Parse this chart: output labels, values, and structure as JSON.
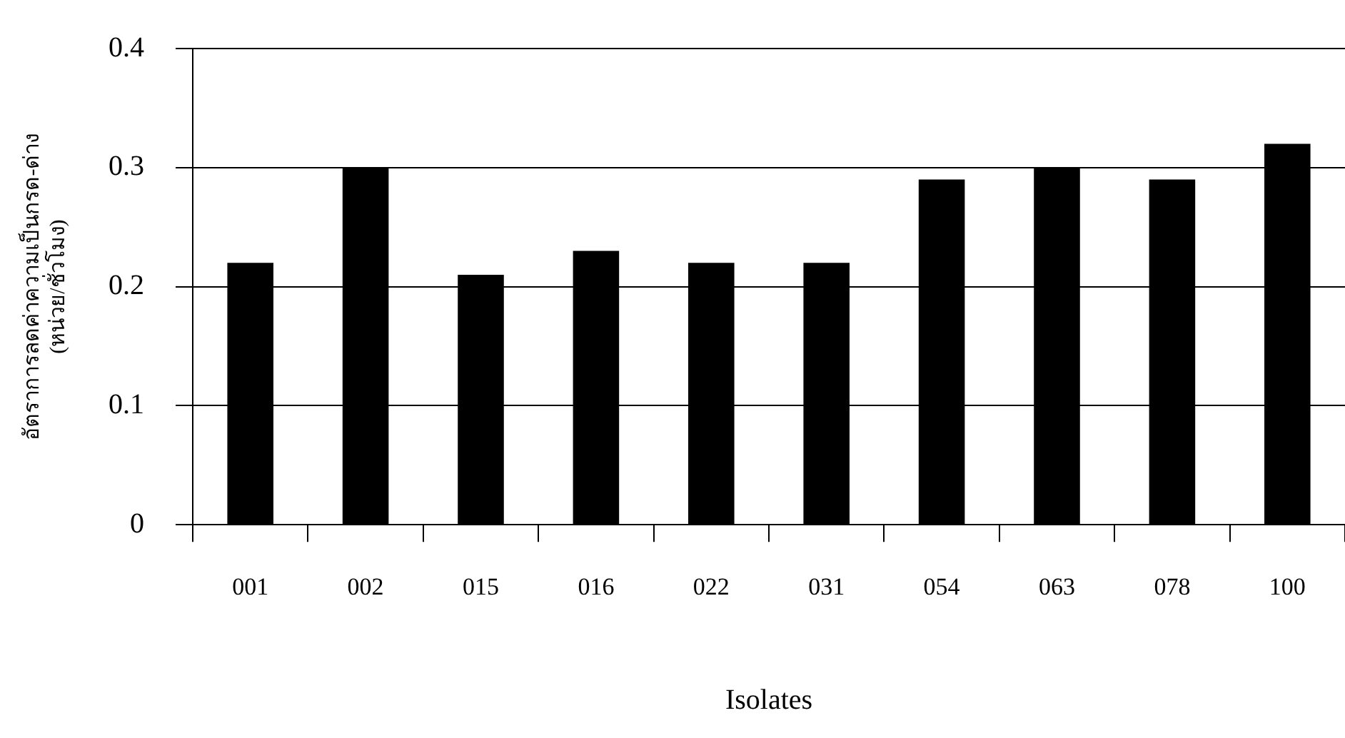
{
  "chart_data": {
    "type": "bar",
    "xlabel": "Isolates",
    "ylabel": [
      "อัตราการลดค่าความเป็นกรด-ด่าง",
      "(หน่วย/ชั่วโมง)"
    ],
    "categories": [
      "001",
      "002",
      "015",
      "016",
      "022",
      "031",
      "054",
      "063",
      "078",
      "100"
    ],
    "values": [
      0.22,
      0.3,
      0.21,
      0.23,
      0.22,
      0.22,
      0.29,
      0.3,
      0.29,
      0.32
    ],
    "color": "#000000",
    "ylim": [
      0,
      0.4
    ],
    "yticks": [
      0,
      0.1,
      0.2,
      0.3,
      0.4
    ],
    "grid": "y",
    "legend": false
  }
}
